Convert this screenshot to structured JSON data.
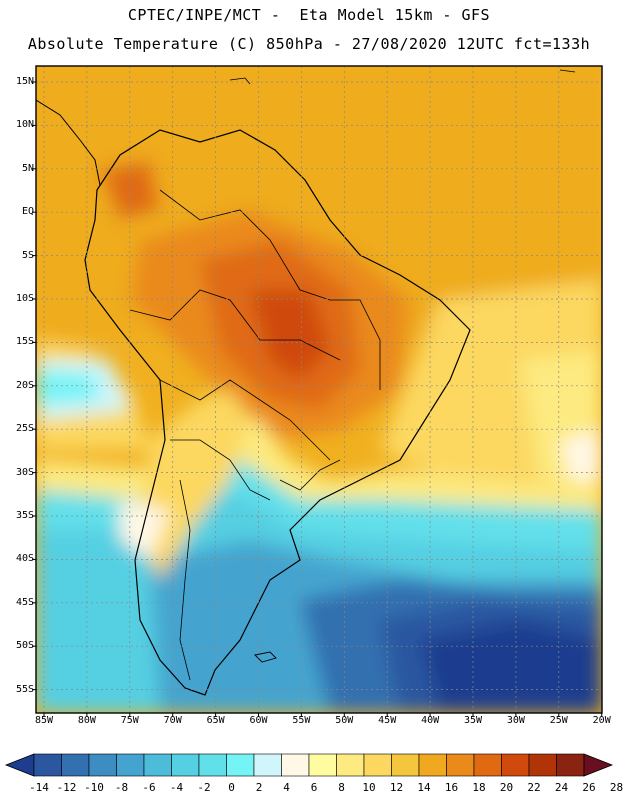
{
  "title": {
    "line1": "CPTEC/INPE/MCT -  Eta Model 15km - GFS",
    "line2": "Absolute Temperature (C) 850hPa - 27/08/2020 12UTC fct=133h"
  },
  "map": {
    "region": "South America",
    "lat_labels": [
      "15N",
      "10N",
      "5N",
      "EQ",
      "5S",
      "10S",
      "15S",
      "20S",
      "25S",
      "30S",
      "35S",
      "40S",
      "45S",
      "50S",
      "55S"
    ],
    "lon_labels": [
      "85W",
      "80W",
      "75W",
      "70W",
      "65W",
      "60W",
      "55W",
      "50W",
      "45W",
      "40W",
      "35W",
      "30W",
      "25W",
      "20W"
    ]
  },
  "colorbar": {
    "labels": [
      "-14",
      "-12",
      "-10",
      "-8",
      "-6",
      "-4",
      "-2",
      "0",
      "2",
      "4",
      "6",
      "8",
      "10",
      "12",
      "14",
      "16",
      "18",
      "20",
      "22",
      "24",
      "26",
      "28"
    ],
    "colors": [
      "#1f3d8f",
      "#2a57a0",
      "#3370b0",
      "#3d8cc2",
      "#45a4cf",
      "#4cbcd9",
      "#55cfe2",
      "#62e0ea",
      "#75f3f5",
      "#d0f6fb",
      "#fff8e6",
      "#fffca0",
      "#fdea80",
      "#fcd860",
      "#f4c63e",
      "#f0a820",
      "#ea8a1a",
      "#e06a12",
      "#cf4a0c",
      "#b03408",
      "#8a2410",
      "#6a0e22"
    ]
  }
}
